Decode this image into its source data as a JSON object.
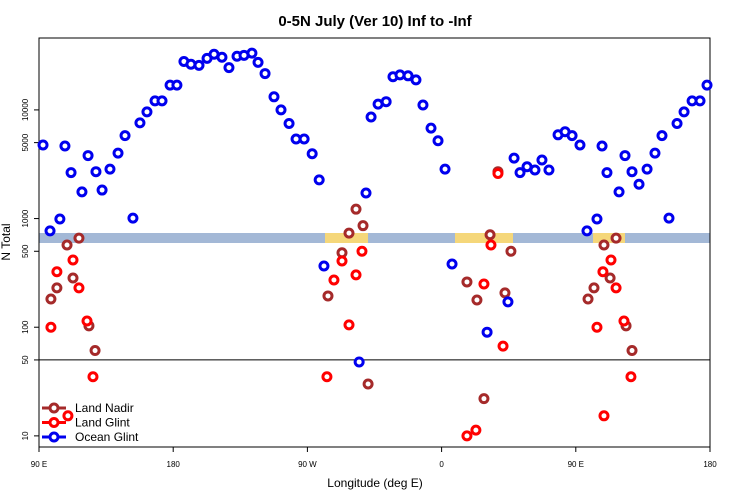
{
  "chart_data": {
    "type": "scatter",
    "title": "0-5N July (Ver 10)   Inf to -Inf",
    "x_label": "Longitude (deg E)",
    "y_label": "N Total",
    "log_y": true,
    "legend": "bottom-left",
    "hline": 50,
    "xlim": [
      90,
      540
    ],
    "xticks": [
      {
        "value": 90,
        "label": "90 E"
      },
      180,
      {
        "value": 270,
        "label": "90 W"
      },
      {
        "value": 360,
        "label": "0"
      },
      {
        "value": 450,
        "label": "90 E"
      },
      {
        "value": 540,
        "label": "180"
      }
    ],
    "ylim": [
      7.9,
      45900
    ],
    "yticks": [
      10,
      50,
      100,
      500,
      1000,
      5000,
      10000
    ],
    "series": [
      {
        "name": "Land Nadir",
        "color": "#a52a2a",
        "x": [
          98,
          102,
          108.8,
          112.8,
          116.8,
          123.5,
          127.6,
          283.8,
          293.2,
          297.9,
          302.6,
          307.3,
          310.7,
          377,
          383.7,
          388.4,
          392.5,
          397.8,
          402.5,
          406.5,
          458.2,
          462.2,
          468.9,
          473,
          477,
          483.7,
          487.7
        ],
        "values": [
          182,
          230,
          571,
          284,
          660,
          103,
          61,
          194,
          484,
          735,
          1220,
          860,
          30,
          261,
          178,
          22,
          710,
          2700,
          207,
          500,
          182,
          230,
          571,
          284,
          660,
          103,
          61
        ]
      },
      {
        "name": "Land Glint",
        "color": "#ff0000",
        "x": [
          98,
          102,
          109.4,
          112.8,
          116.8,
          122.2,
          126.2,
          283.1,
          287.8,
          293.2,
          297.9,
          302.6,
          306.6,
          377,
          383,
          388.4,
          393.1,
          397.8,
          401.2,
          464.2,
          468.2,
          473.6,
          477,
          482.3,
          487,
          468.9
        ],
        "values": [
          100,
          324,
          15.3,
          416,
          230,
          114,
          35,
          35,
          272,
          407,
          105,
          303,
          500,
          10,
          11.3,
          250,
          571,
          2600,
          67,
          100,
          324,
          416,
          230,
          114,
          35,
          15.3
        ]
      },
      {
        "name": "Ocean Glint",
        "color": "#0000ee",
        "x": [
          92.7,
          97.4,
          104,
          107.4,
          111.5,
          118.8,
          122.9,
          128.2,
          132.3,
          137.6,
          143,
          147.7,
          153,
          157.7,
          162.4,
          167.8,
          172.5,
          177.9,
          182.5,
          187.2,
          191.9,
          197.3,
          202.7,
          207.4,
          212.7,
          217.4,
          222.8,
          227.5,
          232.8,
          236.9,
          241.6,
          247.6,
          252.3,
          257.7,
          262.4,
          267.8,
          273.2,
          277.9,
          281.1,
          304.7,
          309.3,
          312.7,
          317.4,
          322.8,
          327.4,
          332.1,
          337.5,
          342.8,
          347.5,
          352.9,
          357.6,
          362.3,
          367,
          390.5,
          404.5,
          408.6,
          412.6,
          417.3,
          422.6,
          427.3,
          432,
          438.1,
          442.8,
          447.5,
          452.8,
          457.5,
          464.2,
          467.6,
          470.9,
          479,
          483,
          487.7,
          492.4,
          497.8,
          503.1,
          507.8,
          512.5,
          517.9,
          522.6,
          528,
          533.3,
          538
        ],
        "values": [
          4750,
          770,
          990,
          4650,
          2650,
          1760,
          3800,
          2700,
          1830,
          2850,
          4000,
          5800,
          1010,
          7600,
          9600,
          12100,
          12100,
          16900,
          16900,
          27900,
          26300,
          25700,
          29800,
          32500,
          30500,
          24500,
          31200,
          31800,
          33300,
          27400,
          21600,
          13200,
          10000,
          7500,
          5400,
          5400,
          3950,
          2270,
          366,
          47.9,
          1720,
          8600,
          11300,
          11900,
          20200,
          21000,
          20600,
          18900,
          11100,
          6800,
          5200,
          2850,
          382,
          90,
          171,
          3600,
          2650,
          3000,
          2800,
          3460,
          2800,
          5900,
          6300,
          5800,
          4750,
          770,
          990,
          4650,
          2650,
          1760,
          3800,
          2700,
          2070,
          2850,
          4000,
          5800,
          1010,
          7500,
          9600,
          12100,
          12100,
          16900
        ]
      }
    ]
  }
}
